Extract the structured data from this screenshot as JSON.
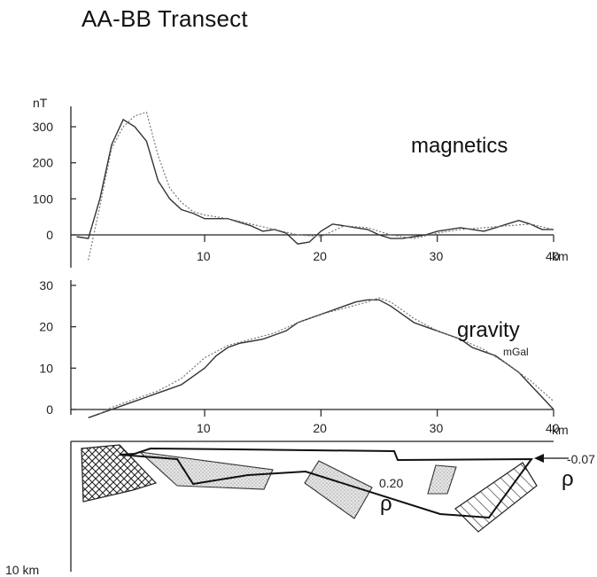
{
  "title": "AA-BB Transect",
  "chart_data": [
    {
      "type": "line",
      "name": "magnetics",
      "label": "magnetics",
      "yunit": "nT",
      "xunit": "km",
      "xlim": [
        -1.5,
        40
      ],
      "ylim": [
        -50,
        350
      ],
      "yticks": [
        0,
        100,
        200,
        300
      ],
      "xticks": [
        10,
        20,
        30,
        40
      ],
      "series": [
        {
          "x": [
            -1,
            0,
            1,
            2,
            3,
            4,
            5,
            6,
            7,
            8,
            9,
            10,
            11,
            12,
            13,
            14,
            15,
            16,
            17,
            18,
            19,
            20,
            21,
            22,
            23,
            24,
            25,
            26,
            27,
            28,
            29,
            30,
            31,
            32,
            33,
            34,
            35,
            36,
            37,
            38,
            39,
            40
          ],
          "y": [
            -5,
            -10,
            100,
            250,
            320,
            300,
            260,
            150,
            100,
            70,
            60,
            45,
            45,
            45,
            35,
            25,
            10,
            15,
            5,
            -25,
            -20,
            10,
            30,
            25,
            20,
            15,
            0,
            -10,
            -10,
            -5,
            0,
            10,
            15,
            20,
            15,
            10,
            20,
            30,
            40,
            30,
            15,
            15
          ]
        },
        {
          "x": [
            0,
            1,
            2,
            3,
            4,
            5,
            6,
            7,
            8,
            9,
            10,
            12,
            14,
            16,
            18,
            20,
            22,
            24,
            26,
            28,
            30,
            32,
            34,
            36,
            38,
            40
          ],
          "y": [
            -70,
            80,
            240,
            300,
            330,
            340,
            220,
            130,
            90,
            65,
            55,
            45,
            30,
            15,
            0,
            -5,
            25,
            20,
            0,
            -10,
            5,
            15,
            20,
            25,
            30,
            15
          ]
        }
      ]
    },
    {
      "type": "line",
      "name": "gravity",
      "label": "gravity",
      "yunit": "mGal",
      "xunit": "km",
      "xlim": [
        -1.5,
        40
      ],
      "ylim": [
        -2,
        32
      ],
      "yticks": [
        0,
        10,
        20,
        30
      ],
      "xticks": [
        10,
        20,
        30,
        40
      ],
      "series": [
        {
          "x": [
            0,
            1,
            2,
            3,
            4,
            5,
            6,
            7,
            8,
            9,
            10,
            11,
            12,
            13,
            14,
            15,
            16,
            17,
            18,
            19,
            20,
            21,
            22,
            23,
            24,
            25,
            26,
            27,
            28,
            29,
            30,
            31,
            32,
            33,
            34,
            35,
            36,
            37,
            38,
            39,
            40
          ],
          "y": [
            -2,
            -1,
            0,
            1,
            2,
            3,
            4,
            5,
            6,
            8,
            10,
            13,
            15,
            16,
            16.5,
            17,
            18,
            19,
            21,
            22,
            23,
            24,
            25,
            26,
            26.5,
            26.5,
            25,
            23,
            21,
            20,
            19,
            18,
            17,
            15,
            14,
            13,
            11,
            9,
            6,
            3,
            0
          ]
        },
        {
          "x": [
            1,
            2,
            4,
            6,
            8,
            10,
            12,
            14,
            16,
            18,
            20,
            22,
            24,
            25,
            26,
            28,
            30,
            32,
            34,
            36,
            38,
            40
          ],
          "y": [
            -1,
            0.5,
            2.5,
            4.5,
            7.5,
            12.5,
            15.5,
            17,
            18.5,
            21,
            23,
            24.5,
            26,
            27,
            26,
            22,
            19,
            17,
            14.5,
            11,
            7,
            2
          ]
        }
      ]
    }
  ],
  "section": {
    "depth_label": "10 km",
    "annotations": [
      "-0.07",
      "0.20"
    ],
    "rho_symbol": "ρ"
  }
}
